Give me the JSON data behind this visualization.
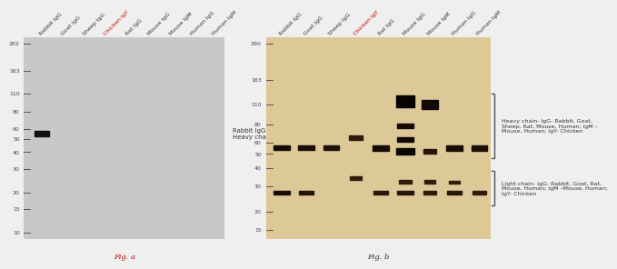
{
  "fig_a": {
    "bg_color": "#c8c8c8",
    "lane_labels": [
      "Rabbit IgG",
      "Goat IgG",
      "Sheep IgG",
      "Chicken IgY",
      "Rat IgG",
      "Mouse IgG",
      "Mouse IgM",
      "Human IgG",
      "Human IgM"
    ],
    "chicken_label_color": "#cc0000",
    "mw_markers": [
      262,
      163,
      110,
      80,
      60,
      50,
      40,
      30,
      20,
      15,
      10
    ],
    "annotation": "Rabbit IgG\nHeavy chain",
    "fig_label": "Fig. a",
    "fig_label_color": "#cc0000"
  },
  "fig_b": {
    "bg_color": "#ddc898",
    "lane_labels": [
      "Rabbit IgG",
      "Goat IgG",
      "Sheep IgG",
      "Chicken IgY",
      "Rat IgG",
      "Mouse IgG",
      "Mouse IgM",
      "Human IgG",
      "Human IgM"
    ],
    "chicken_label_color": "#cc0000",
    "mw_markers": [
      290,
      163,
      110,
      80,
      60,
      50,
      40,
      30,
      20,
      15
    ],
    "heavy_chain_annotation": "Heavy chain- IgG- Rabbit, Goat,\nSheep, Rat, Mouse, Human; IgM –\nMouse, Human; IgY- Chicken",
    "light_chain_annotation": "Light chain- IgG- Rabbit, Goat, Rat,\nMouse, Human; IgM –Mouse, Human;\nIgY- Chicken",
    "fig_label": "Fig. b",
    "heavy_bands": [
      [
        0,
        55,
        0.022,
        0.8,
        1.0
      ],
      [
        1,
        55,
        0.022,
        0.75,
        1.0
      ],
      [
        2,
        55,
        0.022,
        0.68,
        1.0
      ],
      [
        3,
        65,
        0.022,
        0.52,
        0.8
      ],
      [
        4,
        55,
        0.025,
        0.8,
        1.0
      ],
      [
        5,
        52,
        0.03,
        0.9,
        1.1
      ],
      [
        5,
        63,
        0.022,
        0.85,
        1.0
      ],
      [
        5,
        78,
        0.022,
        0.8,
        1.0
      ],
      [
        5,
        115,
        0.06,
        0.93,
        1.1
      ],
      [
        6,
        110,
        0.042,
        0.85,
        1.0
      ],
      [
        6,
        52,
        0.022,
        0.62,
        0.8
      ],
      [
        7,
        55,
        0.025,
        0.75,
        1.0
      ],
      [
        8,
        55,
        0.025,
        0.7,
        1.0
      ]
    ],
    "light_bands": [
      [
        0,
        27,
        0.018,
        0.75,
        1.0
      ],
      [
        1,
        27,
        0.018,
        0.62,
        0.9
      ],
      [
        3,
        34,
        0.018,
        0.48,
        0.7
      ],
      [
        4,
        27,
        0.018,
        0.58,
        0.9
      ],
      [
        5,
        27,
        0.02,
        0.62,
        1.0
      ],
      [
        5,
        32,
        0.016,
        0.52,
        0.8
      ],
      [
        6,
        27,
        0.018,
        0.52,
        0.8
      ],
      [
        6,
        32,
        0.016,
        0.48,
        0.7
      ],
      [
        7,
        27,
        0.018,
        0.58,
        0.9
      ],
      [
        7,
        32,
        0.014,
        0.48,
        0.7
      ],
      [
        8,
        27,
        0.018,
        0.52,
        0.8
      ]
    ]
  }
}
